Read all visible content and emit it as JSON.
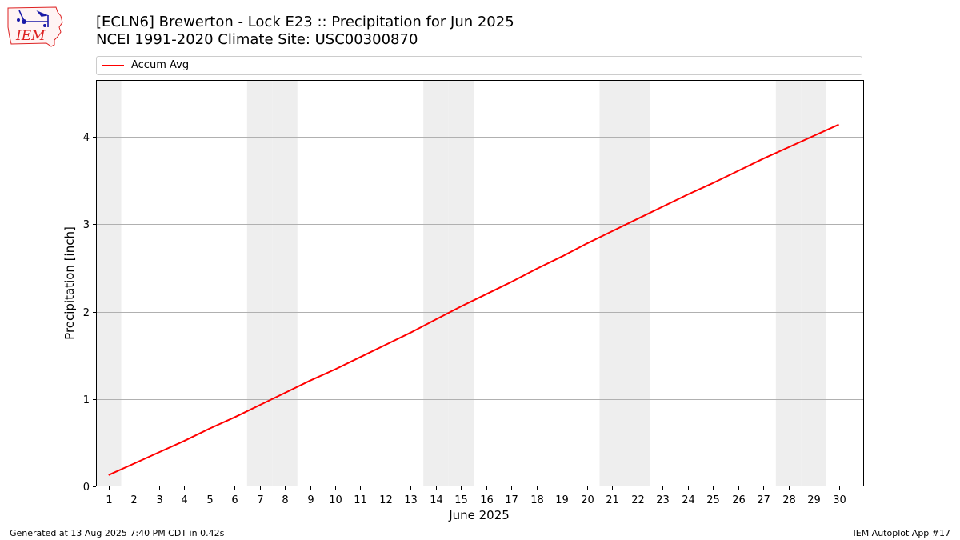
{
  "header": {
    "title_line1": "[ECLN6] Brewerton - Lock E23 :: Precipitation for Jun 2025",
    "title_line2": "NCEI 1991-2020 Climate Site: USC00300870"
  },
  "logo": {
    "text": "IEM"
  },
  "footer": {
    "generated": "Generated at 13 Aug 2025 7:40 PM CDT in 0.42s",
    "app": "IEM Autoplot App #17"
  },
  "colors": {
    "series": "#ff0000",
    "weekend_shade": "#eeeeee",
    "grid": "#b0b0b0"
  },
  "chart_data": {
    "type": "line",
    "xlabel": "June 2025",
    "ylabel": "Precipitation [inch]",
    "xlim": [
      0.5,
      31
    ],
    "ylim": [
      0,
      4.65
    ],
    "x_ticks": [
      1,
      2,
      3,
      4,
      5,
      6,
      7,
      8,
      9,
      10,
      11,
      12,
      13,
      14,
      15,
      16,
      17,
      18,
      19,
      20,
      21,
      22,
      23,
      24,
      25,
      26,
      27,
      28,
      29,
      30
    ],
    "y_ticks": [
      0,
      1,
      2,
      3,
      4
    ],
    "grid": "horizontal",
    "legend": "top",
    "weekend_days": [
      1,
      7,
      8,
      14,
      15,
      21,
      22,
      28,
      29
    ],
    "series": [
      {
        "name": "Accum Avg",
        "color": "#ff0000",
        "x": [
          1,
          2,
          3,
          4,
          5,
          6,
          7,
          8,
          9,
          10,
          11,
          12,
          13,
          14,
          15,
          16,
          17,
          18,
          19,
          20,
          21,
          22,
          23,
          24,
          25,
          26,
          27,
          28,
          29,
          30
        ],
        "values": [
          0.13,
          0.26,
          0.39,
          0.52,
          0.66,
          0.79,
          0.93,
          1.07,
          1.21,
          1.34,
          1.48,
          1.62,
          1.76,
          1.91,
          2.06,
          2.2,
          2.34,
          2.49,
          2.63,
          2.78,
          2.92,
          3.06,
          3.2,
          3.34,
          3.47,
          3.61,
          3.75,
          3.88,
          4.01,
          4.14
        ]
      }
    ]
  }
}
